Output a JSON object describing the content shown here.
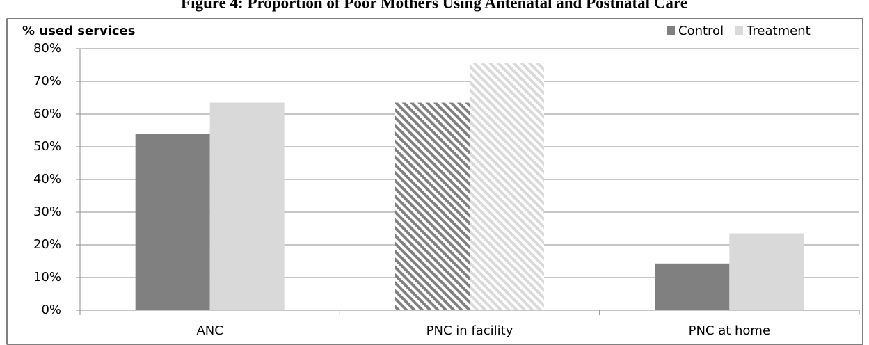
{
  "chart_data": {
    "type": "bar",
    "title": "Figure 4: Proportion of Poor Mothers Using Antenatal and Postnatal Care",
    "y_label": "% used services",
    "categories": [
      "ANC",
      "PNC in facility",
      "PNC at home"
    ],
    "series": [
      {
        "name": "Control",
        "color": "#808080",
        "values": [
          54,
          63.5,
          14.3
        ]
      },
      {
        "name": "Treatment",
        "color": "#d9d9d9",
        "values": [
          63.5,
          75.5,
          23.5
        ]
      }
    ],
    "hatched_categories": [
      1
    ],
    "ylim": [
      0,
      80
    ],
    "yticks": [
      {
        "value": 0,
        "label": "0%"
      },
      {
        "value": 10,
        "label": "10%"
      },
      {
        "value": 20,
        "label": "20%"
      },
      {
        "value": 30,
        "label": "30%"
      },
      {
        "value": 40,
        "label": "40%"
      },
      {
        "value": 50,
        "label": "50%"
      },
      {
        "value": 60,
        "label": "60%"
      },
      {
        "value": 70,
        "label": "70%"
      },
      {
        "value": 80,
        "label": "80%"
      }
    ],
    "grid": true,
    "legend": "top-right"
  }
}
